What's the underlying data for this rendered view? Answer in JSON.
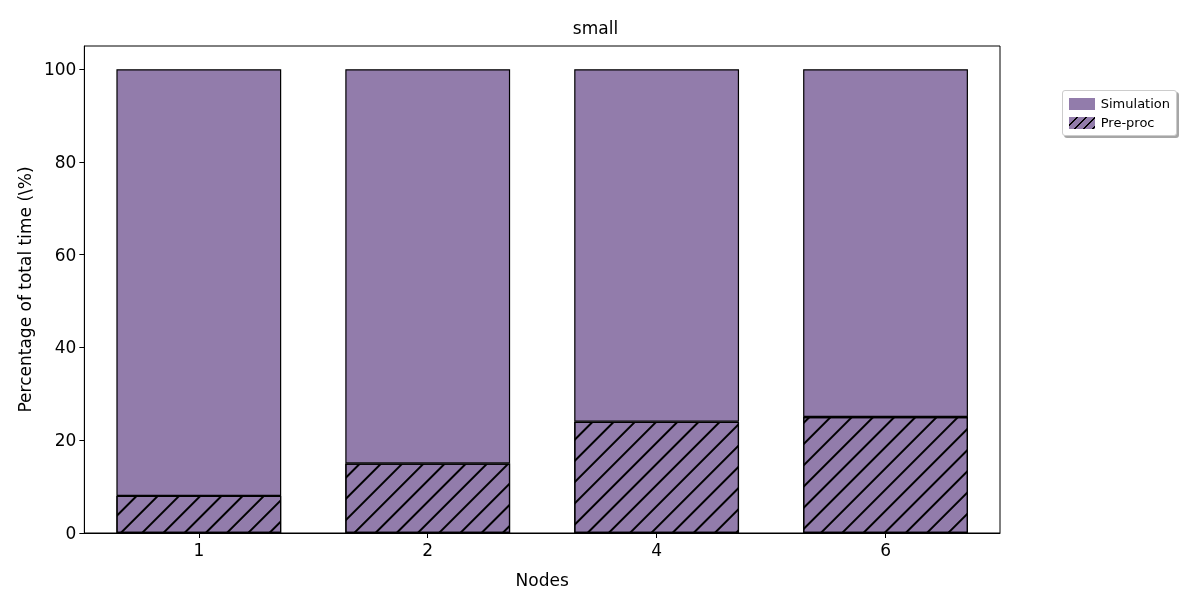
{
  "chart_data": {
    "type": "bar",
    "title": "small",
    "xlabel": "Nodes",
    "ylabel": "Percentage of total time (\\%)",
    "categories": [
      "1",
      "2",
      "4",
      "6"
    ],
    "stacked": true,
    "series": [
      {
        "name": "Pre-proc",
        "color": "#927cab",
        "values": [
          8,
          15,
          24,
          25
        ]
      },
      {
        "name": "Simulation",
        "color": "#927cab",
        "values": [
          92,
          85,
          76,
          75
        ]
      }
    ],
    "ylim": [
      0,
      105
    ],
    "yticks": [
      0,
      20,
      40,
      60,
      80,
      100
    ],
    "grid": false,
    "legend": "top right"
  }
}
